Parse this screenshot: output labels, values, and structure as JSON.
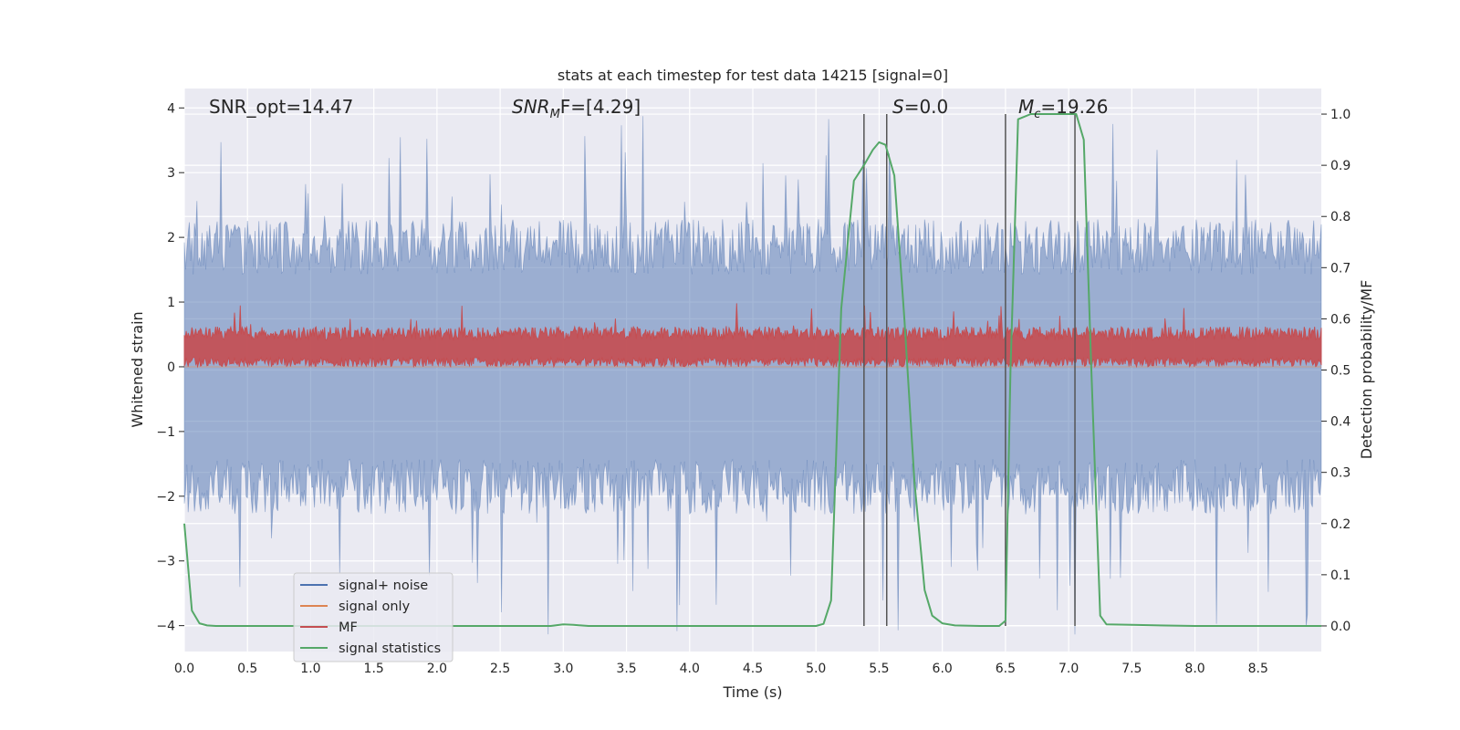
{
  "chart_data": {
    "type": "line",
    "title": "stats at each timestep for test data 14215 [signal=0]",
    "xlabel": "Time (s)",
    "ylabel_left": "Whitened strain",
    "ylabel_right": "Detection probability/MF",
    "xlim": [
      0.0,
      9.0
    ],
    "ylim_left": [
      -4.4,
      4.3
    ],
    "ylim_right": [
      -0.05,
      1.05
    ],
    "x_ticks": [
      "0.0",
      "0.5",
      "1.0",
      "1.5",
      "2.0",
      "2.5",
      "3.0",
      "3.5",
      "4.0",
      "4.5",
      "5.0",
      "5.5",
      "6.0",
      "6.5",
      "7.0",
      "7.5",
      "8.0",
      "8.5"
    ],
    "y_ticks_left": [
      "4",
      "3",
      "2",
      "1",
      "0",
      "−1",
      "−2",
      "−3",
      "−4"
    ],
    "y_ticks_right": [
      "1.0",
      "0.9",
      "0.8",
      "0.7",
      "0.6",
      "0.5",
      "0.4",
      "0.3",
      "0.2",
      "0.1",
      "0.0"
    ],
    "grid": true,
    "background": "#eaeaf2",
    "annotations": {
      "snr_opt": "SNR_opt=14.47",
      "snr_mf_main": "SNR",
      "snr_mf_sub": "M",
      "snr_mf_rest": "F=[4.29]",
      "s_main": "S",
      "s_rest": "=0.0",
      "mc_main": "M",
      "mc_sub": "c",
      "mc_rest": "=19.26"
    },
    "legend": {
      "placement": "lower-left",
      "entries": [
        {
          "label": "signal+ noise",
          "color": "#4c72b0"
        },
        {
          "label": "signal only",
          "color": "#dd8452"
        },
        {
          "label": "MF",
          "color": "#c44e52"
        },
        {
          "label": "signal statistics",
          "color": "#55a868"
        }
      ]
    },
    "series": [
      {
        "name": "signal+ noise",
        "color": "#4c72b0",
        "axis": "left",
        "envelope": {
          "upper_typical": 1.9,
          "upper_peak": 3.9,
          "lower_typical": -1.9,
          "lower_peak": -4.2
        },
        "duration": [
          0.0,
          9.0
        ]
      },
      {
        "name": "signal only",
        "color": "#dd8452",
        "axis": "left",
        "x": [
          0.0,
          9.0
        ],
        "y": [
          0.0,
          0.0
        ]
      },
      {
        "name": "MF",
        "color": "#c44e52",
        "axis": "left",
        "band": {
          "center": 0.3,
          "low": 0.0,
          "high_typical": 0.62,
          "high_peak": 1.0
        },
        "duration": [
          0.0,
          9.0
        ]
      },
      {
        "name": "signal statistics",
        "color": "#55a868",
        "axis": "right",
        "x": [
          0.0,
          0.06,
          0.12,
          0.18,
          0.25,
          0.5,
          1.0,
          2.0,
          2.9,
          3.0,
          3.08,
          3.2,
          4.0,
          5.0,
          5.06,
          5.12,
          5.2,
          5.3,
          5.38,
          5.45,
          5.5,
          5.55,
          5.62,
          5.7,
          5.78,
          5.86,
          5.92,
          6.0,
          6.1,
          6.3,
          6.45,
          6.5,
          6.54,
          6.6,
          6.7,
          7.0,
          7.06,
          7.12,
          7.18,
          7.25,
          7.3,
          7.5,
          8.0,
          9.0
        ],
        "y": [
          0.2,
          0.03,
          0.005,
          0.001,
          0.0,
          0.0,
          0.0,
          0.0,
          0.0,
          0.003,
          0.002,
          0.0,
          0.0,
          0.0,
          0.004,
          0.05,
          0.62,
          0.87,
          0.9,
          0.93,
          0.945,
          0.94,
          0.88,
          0.6,
          0.28,
          0.07,
          0.02,
          0.005,
          0.001,
          0.0,
          0.0,
          0.01,
          0.5,
          0.99,
          1.0,
          1.0,
          1.0,
          0.95,
          0.5,
          0.02,
          0.003,
          0.002,
          0.0,
          0.0
        ]
      }
    ],
    "vertical_markers": [
      5.38,
      5.56,
      6.5,
      7.05
    ]
  }
}
